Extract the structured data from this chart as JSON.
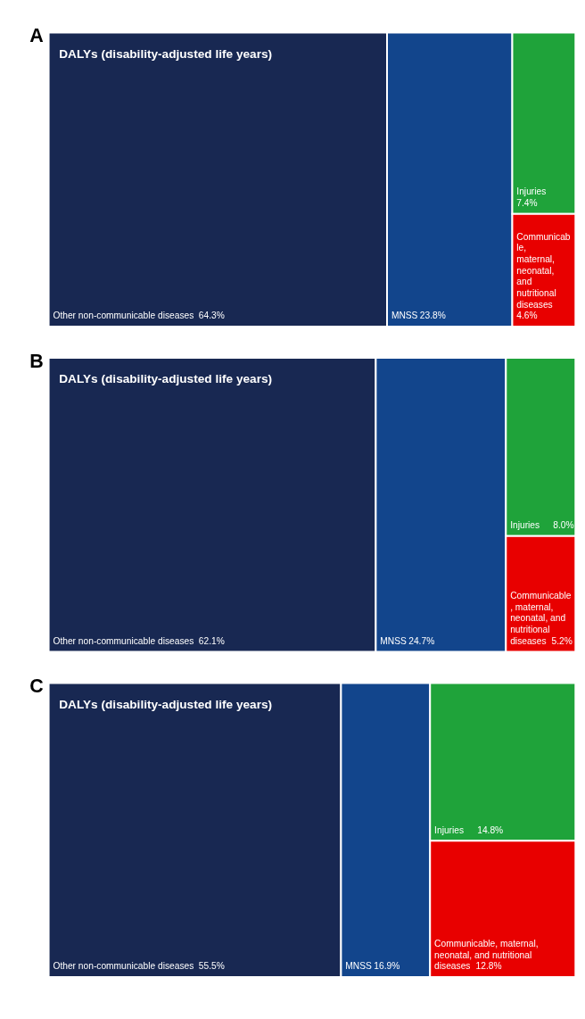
{
  "chart_data": [
    {
      "type": "other",
      "title": "DALYs (disability-adjusted life years)",
      "annotations": [
        "A"
      ],
      "categories": [
        "Other non-communicable diseases",
        "MNSS",
        "Injuries",
        "Communicable, maternal, neonatal, and nutritional diseases"
      ],
      "values": [
        64.3,
        23.8,
        7.4,
        4.6
      ],
      "value_labels": [
        "64.3%",
        "23.8%",
        "7.4%",
        "4.6%"
      ],
      "colors": [
        "#182852",
        "#12458c",
        "#1fa33a",
        "#e80000"
      ]
    },
    {
      "type": "other",
      "title": "DALYs (disability-adjusted life years)",
      "annotations": [
        "B"
      ],
      "categories": [
        "Other non-communicable diseases",
        "MNSS",
        "Injuries",
        "Communicable, maternal, neonatal, and nutritional diseases"
      ],
      "values": [
        62.1,
        24.7,
        8.0,
        5.2
      ],
      "value_labels": [
        "62.1%",
        "24.7%",
        "8.0%",
        "5.2%"
      ],
      "colors": [
        "#182852",
        "#12458c",
        "#1fa33a",
        "#e80000"
      ]
    },
    {
      "type": "other",
      "title": "DALYs (disability-adjusted life years)",
      "annotations": [
        "C"
      ],
      "categories": [
        "Other non-communicable diseases",
        "MNSS",
        "Injuries",
        "Communicable, maternal, neonatal, and nutritional diseases"
      ],
      "values": [
        55.5,
        16.9,
        14.8,
        12.8
      ],
      "value_labels": [
        "55.5%",
        "16.9%",
        "14.8%",
        "12.8%"
      ],
      "colors": [
        "#182852",
        "#12458c",
        "#1fa33a",
        "#e80000"
      ]
    }
  ]
}
